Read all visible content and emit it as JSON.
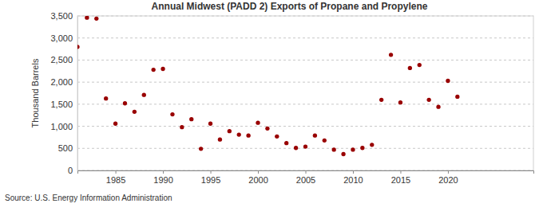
{
  "chart_data": {
    "type": "scatter",
    "title": "Annual Midwest (PADD 2) Exports of Propane and Propylene",
    "y_label": "Thousand Barrels",
    "annotations": [
      "Source: U.S. Energy Information Administration"
    ],
    "x": [
      1981,
      1982,
      1983,
      1984,
      1985,
      1986,
      1987,
      1988,
      1989,
      1990,
      1991,
      1992,
      1993,
      1994,
      1995,
      1996,
      1997,
      1998,
      1999,
      2000,
      2001,
      2002,
      2003,
      2004,
      2005,
      2006,
      2007,
      2008,
      2009,
      2010,
      2011,
      2012,
      2013,
      2014,
      2015,
      2016,
      2017,
      2018,
      2019,
      2020,
      2021
    ],
    "values": [
      2800,
      3460,
      3440,
      1630,
      1060,
      1520,
      1330,
      1710,
      2280,
      2300,
      1270,
      980,
      1160,
      490,
      1060,
      700,
      890,
      810,
      790,
      1080,
      950,
      770,
      620,
      510,
      540,
      790,
      680,
      470,
      370,
      470,
      510,
      580,
      1600,
      2620,
      1540,
      2320,
      2390,
      1600,
      1440,
      2030,
      1670
    ],
    "color": "#990000",
    "marker": "circle",
    "grid": true,
    "xlim": [
      1981,
      2029
    ],
    "xticks": [
      1985,
      1990,
      1995,
      2000,
      2005,
      2010,
      2015,
      2020
    ],
    "ylim": [
      0,
      3500
    ],
    "yticks": [
      0,
      500,
      {
        "value": 1000,
        "label": "1,000"
      },
      {
        "value": 1500,
        "label": "1,500"
      },
      {
        "value": 2000,
        "label": "2,000"
      },
      {
        "value": 2500,
        "label": "2,500"
      },
      {
        "value": 3000,
        "label": "3,000"
      },
      {
        "value": 3500,
        "label": "3,500"
      }
    ]
  }
}
